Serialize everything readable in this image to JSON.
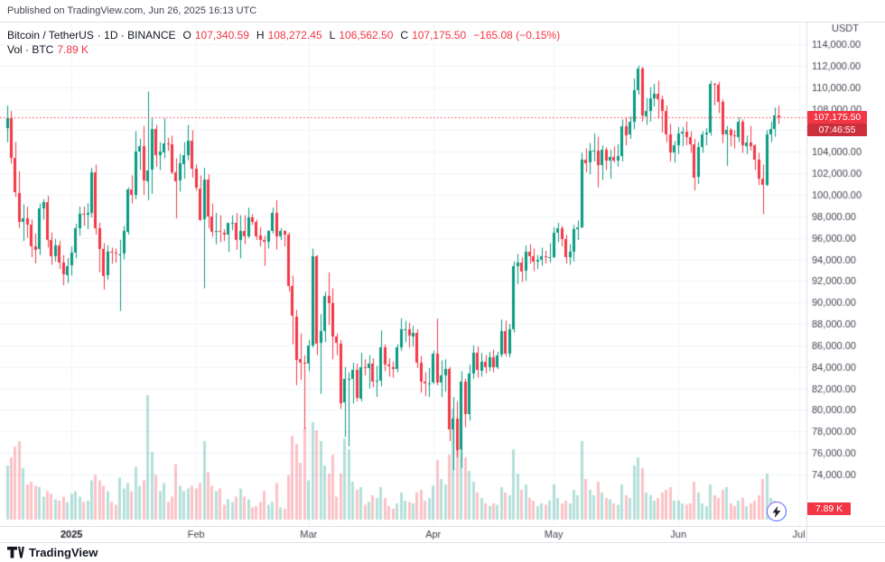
{
  "header": {
    "published": "Published on TradingView.com, Jun 26, 2025 16:13 UTC"
  },
  "legend": {
    "symbol": "Bitcoin / TetherUS",
    "meta": "· 1D · BINANCE",
    "o_label": "O",
    "o": "107,340.59",
    "h_label": "H",
    "h": "108,272.45",
    "l_label": "L",
    "l": "106,562.50",
    "c_label": "C",
    "c": "107,175.50",
    "change": "−165.08 (−0.15%)",
    "vol_label": "Vol · BTC",
    "vol_value": "7.89 K"
  },
  "price_axis": {
    "currency": "USDT",
    "last_price_label": "107,175.50",
    "countdown": "07:46:55",
    "vol_badge": "7.89 K"
  },
  "footer": {
    "brand": "TradingView"
  },
  "colors": {
    "up": "#089981",
    "down": "#f23645",
    "vol_up": "rgba(8,153,129,0.30)",
    "vol_down": "rgba(242,54,69,0.30)",
    "grid": "#f0f3fa",
    "border": "#e0e3eb",
    "axis_text": "#434651",
    "text": "#131722",
    "accent_red": "#f23645"
  },
  "chart_data": {
    "type": "candlestick",
    "title": "Bitcoin / TetherUS, 1D, BINANCE",
    "ylabel": "USDT",
    "price_range": [
      74000,
      114000
    ],
    "grid_step": 2000,
    "current_price": 107175.5,
    "volume_current": 7.89,
    "units": "candles are [open,high,low,close,volume] with prices in thousands of USDT and volume in K BTC, daily from 2024-12-16 to 2025-06-26",
    "y_ticks": [
      {
        "v": 114000,
        "label": "114,000.00"
      },
      {
        "v": 112000,
        "label": "112,000.00"
      },
      {
        "v": 110000,
        "label": "110,000.00"
      },
      {
        "v": 108000,
        "label": "108,000.00"
      },
      {
        "v": 106000,
        "label": "106,000.00"
      },
      {
        "v": 104000,
        "label": "104,000.00"
      },
      {
        "v": 102000,
        "label": "102,000.00"
      },
      {
        "v": 100000,
        "label": "100,000.00"
      },
      {
        "v": 98000,
        "label": "98,000.00"
      },
      {
        "v": 96000,
        "label": "96,000.00"
      },
      {
        "v": 94000,
        "label": "94,000.00"
      },
      {
        "v": 92000,
        "label": "92,000.00"
      },
      {
        "v": 90000,
        "label": "90,000.00"
      },
      {
        "v": 88000,
        "label": "88,000.00"
      },
      {
        "v": 86000,
        "label": "86,000.00"
      },
      {
        "v": 84000,
        "label": "84,000.00"
      },
      {
        "v": 82000,
        "label": "82,000.00"
      },
      {
        "v": 80000,
        "label": "80,000.00"
      },
      {
        "v": 78000,
        "label": "78,000.00"
      },
      {
        "v": 76000,
        "label": "76,000.00"
      },
      {
        "v": 74000,
        "label": "74,000.00"
      }
    ],
    "x_ticks": [
      {
        "i": 16,
        "label": "2025",
        "strong": true
      },
      {
        "i": 47,
        "label": "Feb"
      },
      {
        "i": 75,
        "label": "Mar"
      },
      {
        "i": 106,
        "label": "Apr"
      },
      {
        "i": 136,
        "label": "May"
      },
      {
        "i": 167,
        "label": "Jun"
      },
      {
        "i": 197,
        "label": "Jul"
      }
    ],
    "candles": [
      [
        106.2,
        108.3,
        104.9,
        107.1,
        40
      ],
      [
        107.1,
        107.8,
        102.9,
        103.4,
        46
      ],
      [
        103.4,
        104.9,
        99.8,
        100.2,
        54
      ],
      [
        100.2,
        102.2,
        96.9,
        97.5,
        58
      ],
      [
        97.5,
        99.1,
        95.7,
        97.8,
        38
      ],
      [
        97.8,
        98.9,
        96.0,
        97.2,
        26
      ],
      [
        97.2,
        97.7,
        94.2,
        95.2,
        28
      ],
      [
        95.2,
        96.4,
        93.6,
        94.9,
        25
      ],
      [
        94.9,
        99.2,
        94.4,
        98.7,
        24
      ],
      [
        98.7,
        99.6,
        97.7,
        99.3,
        17
      ],
      [
        99.3,
        99.9,
        95.1,
        95.8,
        21
      ],
      [
        95.8,
        96.5,
        93.5,
        94.3,
        19
      ],
      [
        94.3,
        95.9,
        93.8,
        95.3,
        15
      ],
      [
        95.3,
        95.7,
        93.1,
        93.7,
        14
      ],
      [
        93.7,
        94.4,
        91.6,
        92.6,
        17
      ],
      [
        92.6,
        94.1,
        91.8,
        93.4,
        13
      ],
      [
        93.4,
        95.2,
        92.5,
        94.6,
        19
      ],
      [
        94.6,
        97.3,
        94.1,
        96.9,
        21
      ],
      [
        96.9,
        98.9,
        96.2,
        98.2,
        17
      ],
      [
        98.2,
        98.9,
        97.1,
        98.1,
        13
      ],
      [
        98.1,
        99.2,
        96.8,
        98.3,
        14
      ],
      [
        98.3,
        102.5,
        97.9,
        102.1,
        29
      ],
      [
        102.1,
        102.8,
        96.3,
        96.9,
        33
      ],
      [
        96.9,
        97.4,
        92.8,
        95.0,
        29
      ],
      [
        95.0,
        95.5,
        91.2,
        92.5,
        25
      ],
      [
        92.5,
        95.3,
        92.1,
        94.7,
        21
      ],
      [
        94.7,
        95.1,
        93.6,
        94.6,
        13
      ],
      [
        94.6,
        95.0,
        93.7,
        94.5,
        11
      ],
      [
        94.5,
        95.8,
        89.2,
        94.5,
        31
      ],
      [
        94.5,
        97.1,
        94.0,
        96.6,
        23
      ],
      [
        96.6,
        100.7,
        96.3,
        100.5,
        27
      ],
      [
        100.5,
        101.8,
        99.2,
        100.0,
        21
      ],
      [
        100.0,
        105.9,
        99.6,
        104.0,
        39
      ],
      [
        104.0,
        105.2,
        102.3,
        104.5,
        25
      ],
      [
        104.5,
        106.4,
        100.0,
        101.3,
        29
      ],
      [
        101.3,
        109.6,
        99.5,
        102.3,
        92
      ],
      [
        102.3,
        107.2,
        100.1,
        106.1,
        50
      ],
      [
        106.1,
        106.5,
        102.6,
        103.7,
        33
      ],
      [
        103.7,
        104.9,
        102.3,
        104.0,
        21
      ],
      [
        104.0,
        107.1,
        103.4,
        104.8,
        27
      ],
      [
        104.8,
        105.3,
        104.1,
        104.7,
        13
      ],
      [
        104.7,
        105.5,
        101.9,
        102.1,
        17
      ],
      [
        102.1,
        103.4,
        97.8,
        101.3,
        41
      ],
      [
        101.3,
        103.8,
        100.3,
        102.9,
        25
      ],
      [
        102.9,
        104.9,
        101.5,
        103.7,
        21
      ],
      [
        103.7,
        106.5,
        103.2,
        105.0,
        23
      ],
      [
        105.0,
        106.0,
        101.6,
        102.4,
        25
      ],
      [
        102.4,
        102.8,
        100.4,
        100.6,
        23
      ],
      [
        100.6,
        101.8,
        97.6,
        97.7,
        27
      ],
      [
        97.7,
        102.5,
        91.3,
        101.4,
        58
      ],
      [
        101.4,
        101.9,
        96.9,
        98.0,
        35
      ],
      [
        98.0,
        99.2,
        96.1,
        96.6,
        25
      ],
      [
        96.6,
        98.3,
        95.4,
        96.6,
        21
      ],
      [
        96.6,
        98.1,
        95.6,
        96.5,
        23
      ],
      [
        96.5,
        96.8,
        95.7,
        96.3,
        11
      ],
      [
        96.3,
        97.3,
        94.7,
        97.4,
        15
      ],
      [
        97.4,
        98.1,
        96.7,
        97.4,
        13
      ],
      [
        97.4,
        98.3,
        94.9,
        95.8,
        17
      ],
      [
        95.8,
        98.1,
        94.1,
        96.6,
        23
      ],
      [
        96.6,
        98.1,
        95.4,
        96.1,
        17
      ],
      [
        96.1,
        98.8,
        96.0,
        97.9,
        15
      ],
      [
        97.9,
        98.2,
        97.2,
        97.5,
        9
      ],
      [
        97.5,
        97.7,
        95.8,
        96.2,
        10
      ],
      [
        96.2,
        97.0,
        95.2,
        95.8,
        13
      ],
      [
        95.8,
        96.2,
        93.4,
        95.6,
        21
      ],
      [
        95.6,
        96.7,
        95.0,
        96.6,
        11
      ],
      [
        96.6,
        98.8,
        96.4,
        98.3,
        13
      ],
      [
        98.3,
        99.5,
        94.9,
        96.1,
        27
      ],
      [
        96.1,
        96.9,
        95.8,
        96.6,
        9
      ],
      [
        96.6,
        96.7,
        95.2,
        96.3,
        8
      ],
      [
        96.3,
        96.5,
        91.0,
        91.5,
        33
      ],
      [
        91.5,
        92.5,
        86.1,
        88.7,
        62
      ],
      [
        88.7,
        89.3,
        82.3,
        84.7,
        56
      ],
      [
        84.7,
        87.1,
        82.8,
        84.4,
        42
      ],
      [
        84.4,
        85.1,
        78.2,
        84.3,
        68
      ],
      [
        84.3,
        86.5,
        83.6,
        86.0,
        29
      ],
      [
        86.0,
        95.0,
        85.8,
        94.3,
        72
      ],
      [
        94.3,
        94.4,
        85.1,
        86.2,
        66
      ],
      [
        86.2,
        88.9,
        81.5,
        87.3,
        58
      ],
      [
        87.3,
        91.0,
        86.3,
        90.6,
        40
      ],
      [
        90.6,
        92.8,
        87.9,
        89.9,
        34
      ],
      [
        89.9,
        91.3,
        84.7,
        86.8,
        48
      ],
      [
        86.8,
        87.1,
        85.1,
        86.2,
        17
      ],
      [
        86.2,
        86.5,
        80.1,
        80.7,
        34
      ],
      [
        80.7,
        84.0,
        77.5,
        82.9,
        60
      ],
      [
        82.9,
        83.5,
        76.6,
        82.9,
        52
      ],
      [
        82.9,
        84.4,
        80.6,
        83.7,
        28
      ],
      [
        83.7,
        84.3,
        80.8,
        81.1,
        22
      ],
      [
        81.1,
        85.3,
        80.8,
        84.0,
        24
      ],
      [
        84.0,
        84.7,
        83.2,
        83.9,
        11
      ],
      [
        83.9,
        85.1,
        82.0,
        84.3,
        13
      ],
      [
        84.3,
        84.8,
        82.1,
        82.6,
        18
      ],
      [
        82.6,
        84.1,
        81.2,
        82.7,
        16
      ],
      [
        82.7,
        87.4,
        82.2,
        85.8,
        24
      ],
      [
        85.8,
        86.1,
        83.6,
        84.2,
        16
      ],
      [
        84.2,
        84.8,
        83.1,
        84.0,
        10
      ],
      [
        84.0,
        84.5,
        83.0,
        83.8,
        8
      ],
      [
        83.8,
        86.1,
        83.5,
        85.8,
        12
      ],
      [
        85.8,
        88.5,
        85.5,
        87.5,
        20
      ],
      [
        87.5,
        88.3,
        86.3,
        87.5,
        14
      ],
      [
        87.5,
        88.1,
        85.8,
        86.9,
        13
      ],
      [
        86.9,
        87.8,
        85.9,
        87.2,
        12
      ],
      [
        87.2,
        87.5,
        83.9,
        84.4,
        20
      ],
      [
        84.4,
        85.0,
        81.6,
        82.6,
        22
      ],
      [
        82.6,
        83.5,
        81.3,
        82.4,
        14
      ],
      [
        82.4,
        83.9,
        81.2,
        82.5,
        16
      ],
      [
        82.5,
        85.5,
        82.4,
        85.2,
        25
      ],
      [
        85.2,
        88.5,
        82.3,
        82.5,
        44
      ],
      [
        82.5,
        84.6,
        81.2,
        83.2,
        30
      ],
      [
        83.2,
        84.7,
        81.7,
        83.8,
        26
      ],
      [
        83.8,
        84.0,
        77.1,
        78.2,
        48
      ],
      [
        78.2,
        81.2,
        74.4,
        79.2,
        82
      ],
      [
        79.2,
        80.8,
        75.6,
        76.3,
        58
      ],
      [
        76.3,
        83.6,
        74.6,
        82.6,
        70
      ],
      [
        82.6,
        82.9,
        78.4,
        79.6,
        46
      ],
      [
        79.6,
        84.2,
        79.0,
        83.4,
        36
      ],
      [
        83.4,
        86.0,
        82.9,
        85.3,
        28
      ],
      [
        85.3,
        85.9,
        83.0,
        83.7,
        20
      ],
      [
        83.7,
        85.3,
        83.1,
        84.5,
        16
      ],
      [
        84.5,
        85.1,
        83.4,
        84.0,
        12
      ],
      [
        84.0,
        85.4,
        83.6,
        84.9,
        10
      ],
      [
        84.9,
        85.6,
        83.5,
        84.0,
        12
      ],
      [
        84.0,
        85.4,
        83.8,
        85.1,
        11
      ],
      [
        85.1,
        88.4,
        84.9,
        87.3,
        24
      ],
      [
        87.3,
        88.3,
        85.0,
        85.2,
        20
      ],
      [
        85.2,
        88.0,
        84.9,
        87.5,
        18
      ],
      [
        87.5,
        93.8,
        87.2,
        93.4,
        52
      ],
      [
        93.4,
        94.5,
        91.7,
        93.7,
        34
      ],
      [
        93.7,
        94.2,
        91.9,
        92.9,
        22
      ],
      [
        92.9,
        95.3,
        92.0,
        94.7,
        26
      ],
      [
        94.7,
        95.4,
        93.6,
        94.3,
        16
      ],
      [
        94.3,
        95.0,
        92.9,
        93.8,
        14
      ],
      [
        93.8,
        94.4,
        93.1,
        94.0,
        10
      ],
      [
        94.0,
        95.1,
        93.4,
        94.3,
        12
      ],
      [
        94.3,
        94.8,
        93.6,
        94.2,
        11
      ],
      [
        94.2,
        95.5,
        93.7,
        94.2,
        14
      ],
      [
        94.2,
        97.0,
        94.1,
        96.5,
        26
      ],
      [
        96.5,
        97.4,
        95.6,
        96.9,
        16
      ],
      [
        96.9,
        97.1,
        95.2,
        95.9,
        12
      ],
      [
        95.9,
        96.3,
        93.6,
        94.2,
        14
      ],
      [
        94.2,
        95.4,
        93.5,
        94.7,
        12
      ],
      [
        94.7,
        97.2,
        93.8,
        96.8,
        22
      ],
      [
        96.8,
        97.6,
        95.8,
        97.0,
        18
      ],
      [
        97.0,
        103.9,
        96.9,
        103.3,
        58
      ],
      [
        103.3,
        104.3,
        102.1,
        103.0,
        30
      ],
      [
        103.0,
        104.8,
        101.9,
        104.1,
        22
      ],
      [
        104.1,
        105.7,
        103.1,
        104.1,
        18
      ],
      [
        104.1,
        105.4,
        100.7,
        102.8,
        28
      ],
      [
        102.8,
        104.6,
        101.4,
        104.2,
        20
      ],
      [
        104.2,
        104.4,
        102.3,
        103.2,
        16
      ],
      [
        103.2,
        104.2,
        101.5,
        103.5,
        15
      ],
      [
        103.5,
        104.5,
        103.0,
        103.2,
        12
      ],
      [
        103.2,
        104.7,
        102.6,
        103.6,
        11
      ],
      [
        103.6,
        107.0,
        103.1,
        106.4,
        26
      ],
      [
        106.4,
        107.2,
        104.6,
        105.6,
        18
      ],
      [
        105.6,
        107.3,
        105.2,
        106.8,
        16
      ],
      [
        106.8,
        110.8,
        106.1,
        109.7,
        40
      ],
      [
        109.7,
        112.0,
        109.3,
        111.7,
        46
      ],
      [
        111.7,
        111.9,
        106.8,
        107.3,
        38
      ],
      [
        107.3,
        109.0,
        106.5,
        107.8,
        20
      ],
      [
        107.8,
        110.0,
        106.8,
        109.0,
        18
      ],
      [
        109.0,
        110.3,
        108.2,
        109.4,
        14
      ],
      [
        109.4,
        110.6,
        107.1,
        108.9,
        16
      ],
      [
        108.9,
        109.2,
        105.8,
        107.8,
        20
      ],
      [
        107.8,
        108.3,
        104.9,
        105.6,
        22
      ],
      [
        105.6,
        106.6,
        103.1,
        103.9,
        24
      ],
      [
        103.9,
        105.0,
        103.0,
        104.6,
        14
      ],
      [
        104.6,
        106.3,
        103.8,
        105.7,
        14
      ],
      [
        105.7,
        106.3,
        104.5,
        105.9,
        12
      ],
      [
        105.9,
        106.8,
        104.6,
        105.4,
        11
      ],
      [
        105.4,
        105.9,
        103.9,
        104.7,
        12
      ],
      [
        104.7,
        105.2,
        100.4,
        101.6,
        28
      ],
      [
        101.6,
        104.9,
        101.0,
        104.4,
        20
      ],
      [
        104.4,
        105.9,
        103.9,
        105.6,
        12
      ],
      [
        105.6,
        106.2,
        104.6,
        105.8,
        10
      ],
      [
        105.8,
        110.6,
        105.5,
        110.3,
        26
      ],
      [
        110.3,
        110.4,
        108.3,
        110.2,
        18
      ],
      [
        110.2,
        110.5,
        107.6,
        108.6,
        16
      ],
      [
        108.6,
        108.9,
        104.8,
        105.6,
        22
      ],
      [
        105.6,
        106.4,
        102.7,
        106.0,
        24
      ],
      [
        106.0,
        106.2,
        104.5,
        105.5,
        12
      ],
      [
        105.5,
        106.0,
        104.3,
        105.4,
        10
      ],
      [
        105.4,
        107.2,
        104.9,
        106.8,
        14
      ],
      [
        106.8,
        107.0,
        103.9,
        104.6,
        16
      ],
      [
        104.6,
        105.5,
        103.8,
        104.9,
        10
      ],
      [
        104.9,
        106.4,
        104.1,
        104.6,
        12
      ],
      [
        104.6,
        104.7,
        102.3,
        103.3,
        14
      ],
      [
        103.3,
        103.9,
        100.9,
        101.5,
        18
      ],
      [
        101.5,
        102.8,
        98.2,
        100.9,
        30
      ],
      [
        100.9,
        106.0,
        100.8,
        105.6,
        34
      ],
      [
        105.6,
        106.8,
        104.9,
        106.1,
        16
      ],
      [
        106.1,
        108.1,
        105.4,
        107.34,
        14
      ],
      [
        107.34,
        108.27,
        106.56,
        107.18,
        7.89
      ]
    ]
  }
}
